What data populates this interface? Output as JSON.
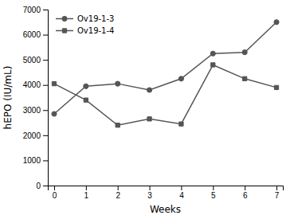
{
  "chart_data": {
    "type": "line",
    "xlabel": "Weeks",
    "ylabel": "hEPO (IU/mL)",
    "x": [
      0,
      1,
      2,
      3,
      4,
      5,
      6,
      7
    ],
    "series": [
      {
        "name": "Ov19-1-3",
        "color": "#555555",
        "marker": "circle",
        "values": [
          2850,
          3950,
          4050,
          3800,
          4250,
          5250,
          5300,
          6500
        ]
      },
      {
        "name": "Ov19-1-4",
        "color": "#555555",
        "marker": "square",
        "values": [
          4050,
          3400,
          2400,
          2650,
          2450,
          4800,
          4250,
          3900
        ]
      }
    ],
    "xlim": [
      -0.2,
      7.2
    ],
    "ylim": [
      0,
      7000
    ],
    "xticks": [
      0,
      1,
      2,
      3,
      4,
      5,
      6,
      7
    ],
    "yticks": [
      0,
      1000,
      2000,
      3000,
      4000,
      5000,
      6000,
      7000
    ],
    "legend": "upper left"
  }
}
